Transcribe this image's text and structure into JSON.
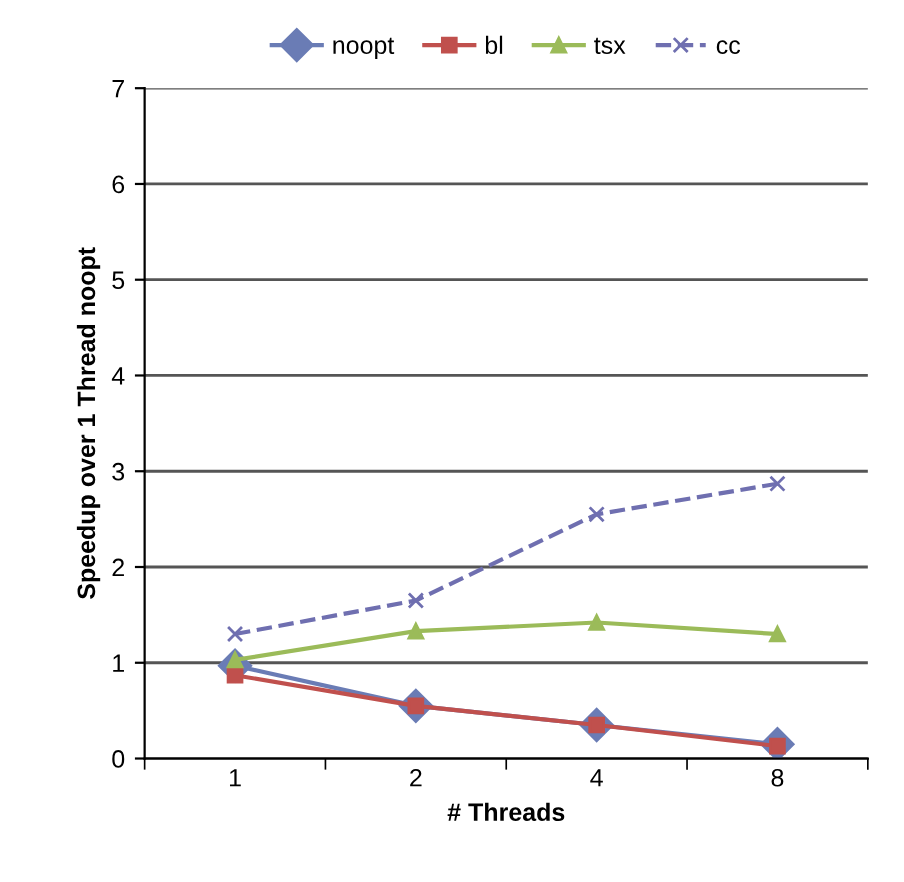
{
  "chart_data": {
    "type": "line",
    "xlabel": "# Threads",
    "ylabel": "Speedup over 1 Thread noopt",
    "categories": [
      "1",
      "2",
      "4",
      "8"
    ],
    "series": [
      {
        "name": "noopt",
        "color": "#6a7cb5",
        "values": [
          0.97,
          0.55,
          0.35,
          0.15
        ],
        "marker": "diamond",
        "line_style": "solid"
      },
      {
        "name": "bl",
        "color": "#c0504d",
        "values": [
          0.87,
          0.55,
          0.35,
          0.13
        ],
        "marker": "square",
        "line_style": "solid"
      },
      {
        "name": "tsx",
        "color": "#9bbb59",
        "values": [
          1.03,
          1.33,
          1.42,
          1.3
        ],
        "marker": "triangle",
        "line_style": "solid"
      },
      {
        "name": "cc",
        "color": "#6f6fb0",
        "values": [
          1.3,
          1.65,
          2.55,
          2.87
        ],
        "marker": "cross",
        "line_style": "dashed"
      }
    ],
    "ylim": [
      0,
      7
    ],
    "yticks": [
      0,
      1,
      2,
      3,
      4,
      5,
      6,
      7
    ],
    "grid": "y",
    "legend": "top"
  }
}
